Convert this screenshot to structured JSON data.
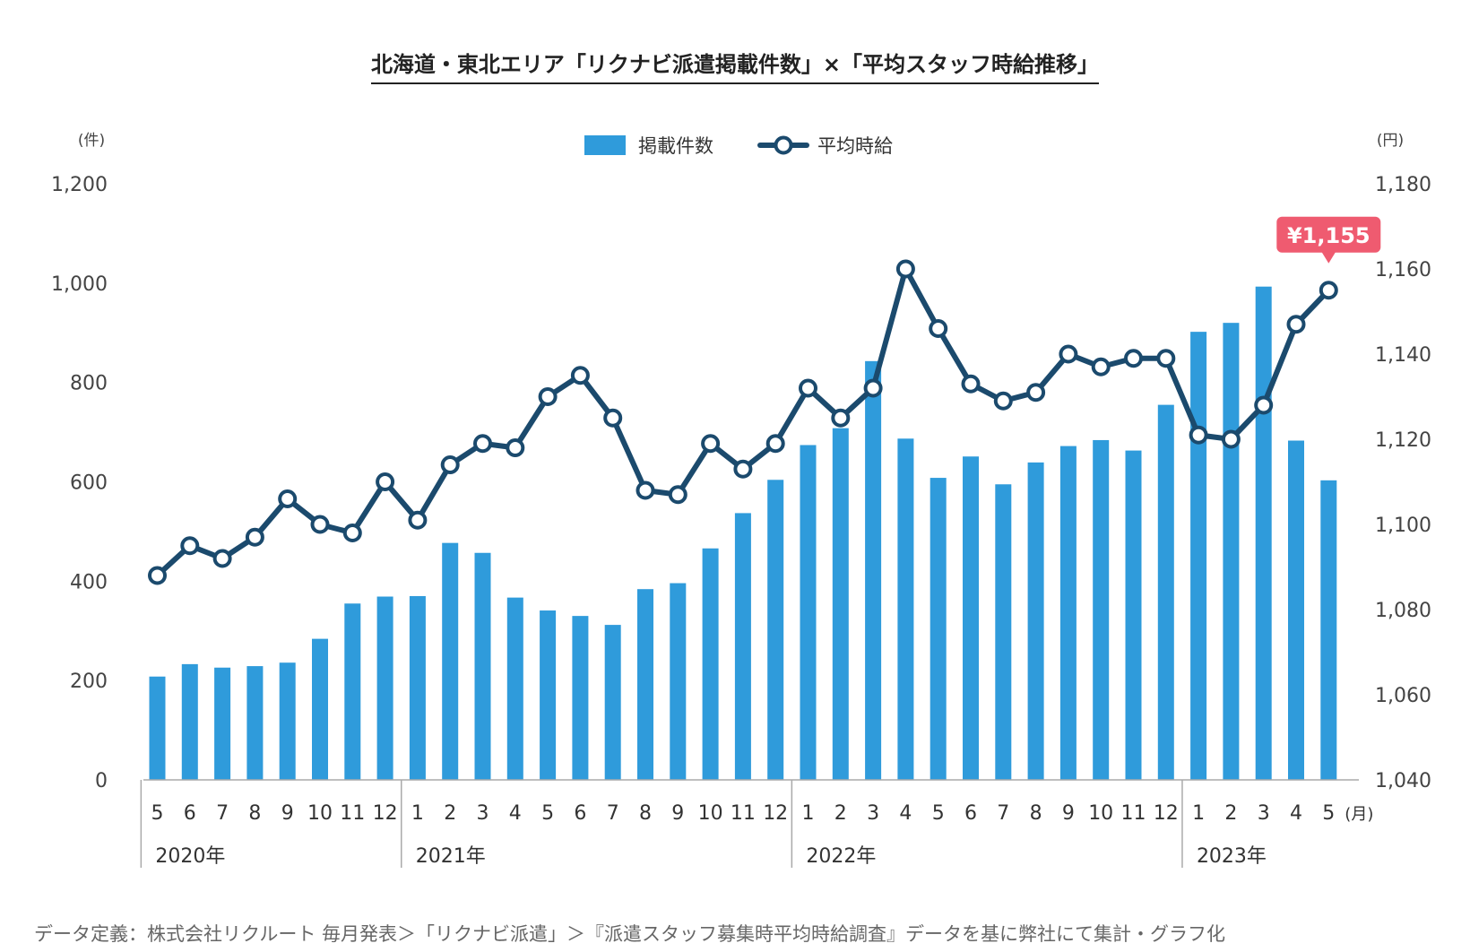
{
  "title": "北海道・東北エリア「リクナビ派遣掲載件数」×「平均スタッフ時給推移」",
  "footnote": "データ定義：株式会社リクルート 毎月発表＞「リクナビ派遣」＞『派遣スタッフ募集時平均時給調査』データを基に弊社にて集計・グラフ化",
  "chart_data": {
    "type": "bar+line",
    "categories": [
      "5",
      "6",
      "7",
      "8",
      "9",
      "10",
      "11",
      "12",
      "1",
      "2",
      "3",
      "4",
      "5",
      "6",
      "7",
      "8",
      "9",
      "10",
      "11",
      "12",
      "1",
      "2",
      "3",
      "4",
      "5",
      "6",
      "7",
      "8",
      "9",
      "10",
      "11",
      "12",
      "1",
      "2",
      "3",
      "4",
      "5"
    ],
    "month_unit_label": "(月)",
    "years": [
      {
        "label": "2020年",
        "start_index": 0
      },
      {
        "label": "2021年",
        "start_index": 8
      },
      {
        "label": "2022年",
        "start_index": 20
      },
      {
        "label": "2023年",
        "start_index": 32
      }
    ],
    "series": [
      {
        "name": "掲載件数",
        "type": "bar",
        "axis": "left",
        "color": "#2f9bdb",
        "values": [
          208,
          233,
          226,
          229,
          236,
          284,
          355,
          369,
          370,
          477,
          457,
          367,
          341,
          330,
          312,
          384,
          396,
          466,
          537,
          604,
          674,
          708,
          843,
          687,
          608,
          651,
          595,
          639,
          672,
          684,
          663,
          755,
          902,
          920,
          993,
          683,
          603
        ]
      },
      {
        "name": "平均時給",
        "type": "line",
        "axis": "right",
        "color": "#1b4a6d",
        "values": [
          1088,
          1095,
          1092,
          1097,
          1106,
          1100,
          1098,
          1110,
          1101,
          1114,
          1119,
          1118,
          1130,
          1135,
          1125,
          1108,
          1107,
          1119,
          1113,
          1119,
          1132,
          1125,
          1132,
          1160,
          1146,
          1133,
          1129,
          1131,
          1140,
          1137,
          1139,
          1139,
          1121,
          1120,
          1128,
          1147,
          1155
        ]
      }
    ],
    "left_axis": {
      "unit": "(件)",
      "ylim": [
        0,
        1200
      ],
      "ticks": [
        0,
        200,
        400,
        600,
        800,
        1000,
        1200
      ],
      "tick_labels": [
        "0",
        "200",
        "400",
        "600",
        "800",
        "1,000",
        "1,200"
      ]
    },
    "right_axis": {
      "unit": "(円)",
      "ylim": [
        1040,
        1180
      ],
      "ticks": [
        1040,
        1060,
        1080,
        1100,
        1120,
        1140,
        1160,
        1180
      ],
      "tick_labels": [
        "1,040",
        "1,060",
        "1,080",
        "1,100",
        "1,120",
        "1,140",
        "1,160",
        "1,180"
      ]
    },
    "annotation": {
      "text": "¥1,155",
      "index": 36,
      "color": "#ef5b70"
    },
    "legend_position": "top-center",
    "grid": false
  }
}
